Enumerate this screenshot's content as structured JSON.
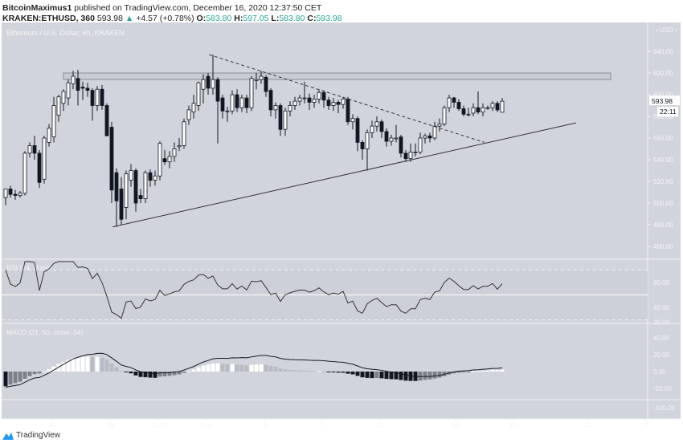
{
  "header": {
    "author": "BitcoinMaximus1",
    "published": "published on TradingView.com, December 16, 2020 12:37:50 CET",
    "symbol": "KRAKEN:ETHUSD, 360",
    "last": "593.98",
    "change": "+4.57 (+0.78%)",
    "o_label": "O:",
    "o": "583.80",
    "h_label": "H:",
    "h": "597.05",
    "l_label": "L:",
    "l": "583.80",
    "c_label": "C:",
    "c": "593.98"
  },
  "footer": {
    "brand": "TradingView",
    "logo_icon": "tradingview-logo-icon"
  },
  "colors": {
    "background": "#d1d4dc",
    "up": "#ffffff",
    "down": "#131722",
    "green": "#26a69a"
  },
  "chart_data": {
    "type": "candlestick",
    "title": "Ethereum / U.S. Dollar, 6h, KRAKEN",
    "currency": "USD",
    "last_price_label": "593.98",
    "countdown_label": "22:11",
    "ylim": [
      445,
      650
    ],
    "yticks": [
      "640.00",
      "620.00",
      "600.00",
      "580.00",
      "560.00",
      "540.00",
      "520.00",
      "500.00",
      "480.00",
      "460.00"
    ],
    "xticks": [
      {
        "label": "23",
        "bar": 9.7
      },
      {
        "label": "26",
        "bar": 21.8
      },
      {
        "label": "13:00",
        "bar": 31.8
      },
      {
        "label": "Dec",
        "bar": 41.7
      },
      {
        "label": "4",
        "bar": 53.8
      },
      {
        "label": "7",
        "bar": 65.5
      },
      {
        "label": "10",
        "bar": 77.5
      },
      {
        "label": "14",
        "bar": 93.3
      },
      {
        "label": "17",
        "bar": 105.3
      },
      {
        "label": "21",
        "bar": 120.7
      },
      {
        "label": "24",
        "bar": 132.7
      }
    ],
    "candles": [
      [
        505,
        512,
        498,
        513
      ],
      [
        513,
        516,
        505,
        508
      ],
      [
        508,
        512,
        503,
        507
      ],
      [
        507,
        511,
        505,
        509
      ],
      [
        509,
        548,
        507,
        546
      ],
      [
        546,
        556,
        542,
        553
      ],
      [
        553,
        562,
        540,
        546
      ],
      [
        546,
        549,
        514,
        519
      ],
      [
        522,
        562,
        518,
        560
      ],
      [
        556,
        573,
        552,
        569
      ],
      [
        561,
        598,
        556,
        590
      ],
      [
        581,
        600,
        575,
        598
      ],
      [
        592,
        605,
        585,
        603
      ],
      [
        597,
        614,
        590,
        611
      ],
      [
        610,
        622,
        605,
        617
      ],
      [
        615,
        623,
        590,
        604
      ],
      [
        607,
        612,
        595,
        606
      ],
      [
        606,
        611,
        598,
        604
      ],
      [
        604,
        606,
        576,
        590
      ],
      [
        590,
        608,
        585,
        605
      ],
      [
        605,
        609,
        586,
        590
      ],
      [
        590,
        592,
        562,
        562
      ],
      [
        570,
        575,
        500,
        512
      ],
      [
        528,
        532,
        478,
        502
      ],
      [
        513,
        524,
        480,
        485
      ],
      [
        496,
        530,
        485,
        527
      ],
      [
        521,
        536,
        515,
        530
      ],
      [
        530,
        532,
        492,
        500
      ],
      [
        507,
        513,
        500,
        504
      ],
      [
        504,
        530,
        500,
        528
      ],
      [
        528,
        531,
        515,
        521
      ],
      [
        521,
        530,
        516,
        525
      ],
      [
        525,
        557,
        521,
        555
      ],
      [
        541,
        549,
        535,
        538
      ],
      [
        538,
        548,
        532,
        543
      ],
      [
        543,
        556,
        538,
        550
      ],
      [
        552,
        560,
        548,
        553
      ],
      [
        553,
        578,
        550,
        575
      ],
      [
        577,
        590,
        572,
        586
      ],
      [
        584,
        600,
        578,
        592
      ],
      [
        590,
        612,
        585,
        611
      ],
      [
        605,
        619,
        592,
        614
      ],
      [
        617,
        620,
        600,
        606
      ],
      [
        606,
        637,
        600,
        614
      ],
      [
        614,
        616,
        555,
        594
      ],
      [
        597,
        600,
        578,
        585
      ],
      [
        585,
        589,
        575,
        585
      ],
      [
        585,
        604,
        582,
        600
      ],
      [
        600,
        605,
        584,
        588
      ],
      [
        588,
        600,
        584,
        597
      ],
      [
        597,
        600,
        583,
        588
      ],
      [
        588,
        617,
        585,
        615
      ],
      [
        613,
        620,
        605,
        614
      ],
      [
        614,
        622,
        610,
        617
      ],
      [
        616,
        618,
        598,
        603
      ],
      [
        604,
        606,
        580,
        586
      ],
      [
        586,
        593,
        578,
        590
      ],
      [
        590,
        592,
        562,
        568
      ],
      [
        568,
        588,
        562,
        585
      ],
      [
        585,
        594,
        580,
        590
      ],
      [
        590,
        598,
        586,
        594
      ],
      [
        594,
        600,
        590,
        597
      ],
      [
        597,
        612,
        592,
        597
      ],
      [
        597,
        601,
        586,
        593
      ],
      [
        593,
        600,
        588,
        596
      ],
      [
        596,
        605,
        592,
        602
      ],
      [
        602,
        604,
        588,
        595
      ],
      [
        595,
        598,
        586,
        590
      ],
      [
        590,
        597,
        585,
        593
      ],
      [
        593,
        595,
        583,
        591
      ],
      [
        591,
        598,
        587,
        596
      ],
      [
        596,
        598,
        572,
        575
      ],
      [
        575,
        582,
        568,
        578
      ],
      [
        578,
        580,
        548,
        556
      ],
      [
        556,
        558,
        540,
        550
      ],
      [
        550,
        568,
        530,
        565
      ],
      [
        565,
        576,
        560,
        571
      ],
      [
        571,
        580,
        566,
        575
      ],
      [
        575,
        577,
        560,
        566
      ],
      [
        566,
        569,
        552,
        557
      ],
      [
        557,
        563,
        553,
        560
      ],
      [
        560,
        572,
        556,
        560
      ],
      [
        561,
        563,
        542,
        546
      ],
      [
        546,
        549,
        538,
        541
      ],
      [
        541,
        555,
        538,
        547
      ],
      [
        547,
        555,
        543,
        547
      ],
      [
        547,
        565,
        545,
        560
      ],
      [
        560,
        564,
        555,
        562
      ],
      [
        562,
        565,
        556,
        560
      ],
      [
        560,
        575,
        558,
        571
      ],
      [
        571,
        578,
        566,
        573
      ],
      [
        573,
        590,
        571,
        588
      ],
      [
        588,
        600,
        584,
        597
      ],
      [
        597,
        598,
        588,
        593
      ],
      [
        593,
        596,
        585,
        587
      ],
      [
        587,
        590,
        580,
        582
      ],
      [
        582,
        588,
        580,
        582
      ],
      [
        583,
        592,
        580,
        588
      ],
      [
        588,
        603,
        582,
        584
      ],
      [
        584,
        592,
        580,
        588
      ],
      [
        588,
        590,
        586,
        588
      ],
      [
        588,
        594,
        585,
        592
      ],
      [
        592,
        594,
        584,
        586
      ],
      [
        583.8,
        597.05,
        583.8,
        593.98
      ]
    ],
    "annotations": {
      "resistance_zone": {
        "from_bar": 12,
        "to_bar": 125.5,
        "low": 614,
        "high": 620
      },
      "descending_dashed": {
        "from": [
          42.2,
          637
        ],
        "to": [
          99.3,
          556
        ]
      },
      "ascending_support": {
        "from": [
          22.2,
          478
        ],
        "to": [
          118.3,
          574
        ]
      }
    },
    "rsi": {
      "label": "RSI (14, close)",
      "yticks": [
        "60.00",
        "40.00",
        "30.00"
      ],
      "levels": [
        70,
        50,
        30
      ]
    },
    "macd": {
      "label": "MACD (21, 50, close, 34)",
      "yticks": [
        "40.00",
        "20.00",
        "0.00",
        "-20.00",
        "-100.00"
      ]
    }
  }
}
